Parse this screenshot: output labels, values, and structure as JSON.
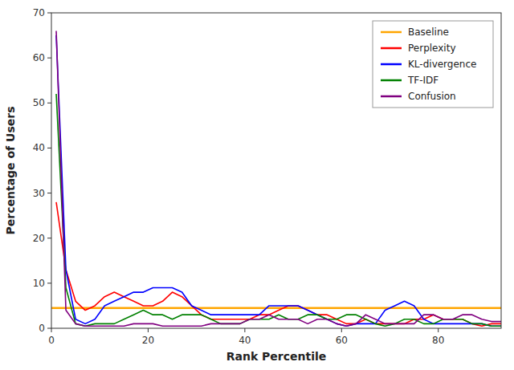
{
  "chart_data": {
    "type": "line",
    "xlabel": "Rank Percentile",
    "ylabel": "Percentage of Users",
    "xlim": [
      0,
      93
    ],
    "ylim": [
      0,
      70
    ],
    "xticks": [
      0,
      20,
      40,
      60,
      80
    ],
    "yticks": [
      0,
      10,
      20,
      30,
      40,
      50,
      60,
      70
    ],
    "grid": false,
    "legend": "upper-right",
    "x": [
      1,
      3,
      5,
      7,
      9,
      11,
      13,
      15,
      17,
      19,
      21,
      23,
      25,
      27,
      29,
      31,
      33,
      35,
      37,
      39,
      41,
      43,
      45,
      47,
      49,
      51,
      53,
      55,
      57,
      59,
      61,
      63,
      65,
      67,
      69,
      71,
      73,
      75,
      77,
      79,
      81,
      83,
      85,
      87,
      89,
      91,
      93
    ],
    "reference_lines": [
      {
        "name": "Baseline",
        "value": 4.5,
        "color": "#FFA500"
      }
    ],
    "series": [
      {
        "name": "Perplexity",
        "color": "#FF0000",
        "values": [
          28,
          13,
          6,
          4,
          5,
          7,
          8,
          7,
          6,
          5,
          5,
          6,
          8,
          7,
          5,
          3,
          2,
          2,
          2,
          2,
          2,
          3,
          3,
          4,
          5,
          5,
          4,
          3,
          3,
          2,
          1,
          1,
          2,
          1,
          1,
          1,
          1,
          2,
          2,
          3,
          2,
          2,
          2,
          1,
          0.5,
          1,
          1
        ]
      },
      {
        "name": "KL-divergence",
        "color": "#0000FF",
        "values": [
          65,
          13,
          2,
          1,
          2,
          5,
          6,
          7,
          8,
          8,
          9,
          9,
          9,
          8,
          5,
          4,
          3,
          3,
          3,
          3,
          3,
          3,
          5,
          5,
          5,
          5,
          4,
          3,
          2,
          1,
          0.5,
          1,
          1,
          1,
          4,
          5,
          6,
          5,
          2,
          1,
          1,
          1,
          1,
          1,
          1,
          0.5,
          0.5
        ]
      },
      {
        "name": "TF-IDF",
        "color": "#008000",
        "values": [
          52,
          9,
          1,
          0.5,
          1,
          1,
          1,
          2,
          3,
          4,
          3,
          3,
          2,
          3,
          3,
          3,
          2,
          1,
          1,
          1,
          2,
          2,
          2,
          3,
          2,
          2,
          3,
          3,
          2,
          2,
          3,
          3,
          2,
          1,
          0.5,
          1,
          2,
          2,
          1,
          1,
          2,
          2,
          2,
          1,
          1,
          0.5,
          0.5
        ]
      },
      {
        "name": "Confusion",
        "color": "#800080",
        "values": [
          66,
          4,
          1,
          0.5,
          0.5,
          0.5,
          0.5,
          0.5,
          1,
          1,
          1,
          0.5,
          0.5,
          0.5,
          0.5,
          0.5,
          1,
          1,
          1,
          1,
          2,
          2,
          3,
          2,
          2,
          2,
          1,
          2,
          2,
          1,
          0.5,
          1,
          3,
          2,
          1,
          1,
          1,
          1,
          3,
          3,
          2,
          2,
          3,
          3,
          2,
          1.5,
          1.5
        ]
      }
    ]
  }
}
